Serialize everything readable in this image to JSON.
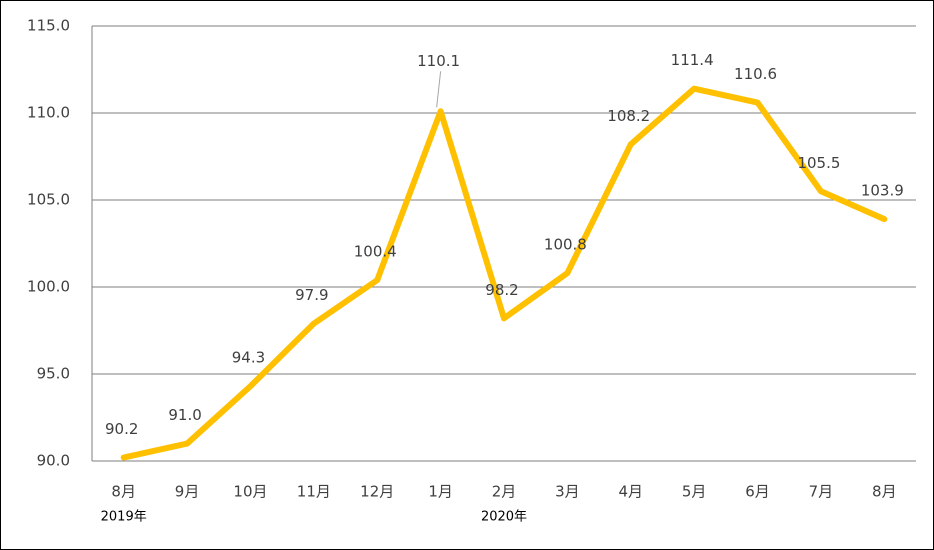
{
  "chart_data": {
    "type": "line",
    "categories": [
      "8月",
      "9月",
      "10月",
      "11月",
      "12月",
      "1月",
      "2月",
      "3月",
      "4月",
      "5月",
      "6月",
      "7月",
      "8月"
    ],
    "year_labels": [
      "2019年",
      null,
      null,
      null,
      null,
      null,
      "2020年",
      null,
      null,
      null,
      null,
      null,
      null
    ],
    "values": [
      90.2,
      91.0,
      94.3,
      97.9,
      100.4,
      110.1,
      98.2,
      100.8,
      108.2,
      111.4,
      110.6,
      105.5,
      103.9
    ],
    "value_labels": [
      "90.2",
      "91.0",
      "94.3",
      "97.9",
      "100.4",
      "110.1",
      "98.2",
      "100.8",
      "108.2",
      "111.4",
      "110.6",
      "105.5",
      "103.9"
    ],
    "color": "#FFC000",
    "ylim": [
      90,
      115
    ],
    "yticks": [
      {
        "value": 90,
        "label": "90.0"
      },
      {
        "value": 95,
        "label": "95.0"
      },
      {
        "value": 100,
        "label": "100.0"
      },
      {
        "value": 105,
        "label": "105.0"
      },
      {
        "value": 110,
        "label": "110.0"
      },
      {
        "value": 115,
        "label": "115.0"
      }
    ],
    "grid": true
  }
}
